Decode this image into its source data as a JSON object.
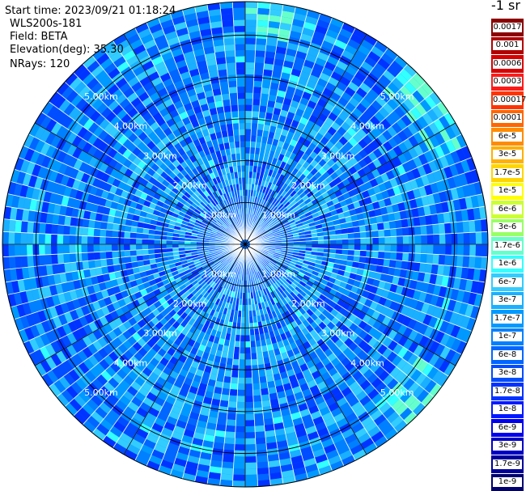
{
  "header": {
    "start_time": "Start time: 2023/09/21 01:18:24",
    "instrument": "WLS200s-181",
    "field": "Field: BETA",
    "elevation": "Elevation(deg): 35.30",
    "nrays": "NRays: 120"
  },
  "colorbar": {
    "title": "-1 sr",
    "levels": [
      "0.0017",
      "0.001",
      "0.0006",
      "0.0003",
      "0.00017",
      "0.0001",
      "6e-5",
      "3e-5",
      "1.7e-5",
      "1e-5",
      "6e-6",
      "3e-6",
      "1.7e-6",
      "1e-6",
      "6e-7",
      "3e-7",
      "1.7e-7",
      "1e-7",
      "6e-8",
      "3e-8",
      "1.7e-8",
      "1e-8",
      "6e-9",
      "3e-9",
      "1.7e-9",
      "1e-9"
    ],
    "colors": [
      "#8b0000",
      "#b00000",
      "#d80000",
      "#ff1a1a",
      "#ff3300",
      "#ff6600",
      "#ff8c00",
      "#ffb000",
      "#ffd500",
      "#ffff00",
      "#ccff33",
      "#99ff66",
      "#66ffcc",
      "#33ffff",
      "#33ccff",
      "#1ab0ff",
      "#0099ff",
      "#0080ff",
      "#0066ff",
      "#004cff",
      "#0033ff",
      "#0019ff",
      "#0000ee",
      "#0000c4",
      "#00009a",
      "#000070"
    ]
  },
  "chart_data": {
    "type": "heatmap",
    "projection": "polar PPI",
    "field": "BETA",
    "nrays": 120,
    "range_rings_km": [
      1.0,
      2.0,
      3.0,
      4.0,
      5.0
    ],
    "range_labels": [
      "1.00km",
      "2.00km",
      "3.00km",
      "4.00km",
      "5.00km"
    ],
    "max_range_km": 5.8,
    "dominant_values": "1.7e-8 to 1e-7 (blue to cyan)",
    "enhanced_regions": [
      "upper rim near north",
      "north-east rim",
      "south-east rim"
    ]
  }
}
